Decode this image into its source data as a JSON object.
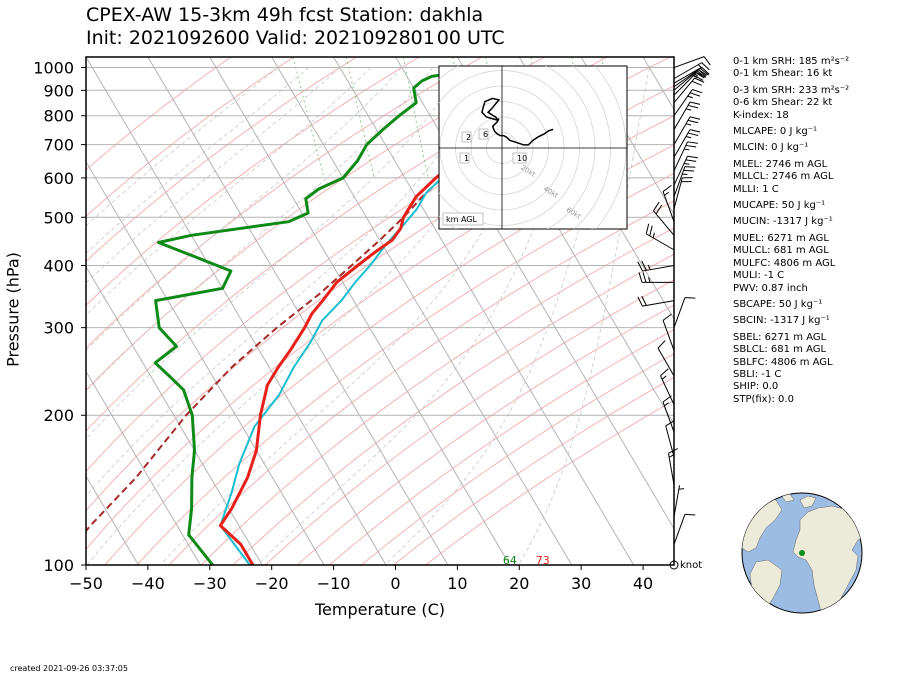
{
  "title_line1": "CPEX-AW 15-3km  49h fcst  Station: dakhla",
  "title_line2": "Init: 2021092600  Valid: 2021092801 00 UTC",
  "created": "created 2021-09-26 03:37:05",
  "wind_unit": "knot",
  "hodograph_label": "km AGL",
  "indices": [
    "0-1 km SRH: 185 m²s⁻²",
    "0-1 km Shear: 16 kt",
    "0-3 km SRH: 233 m²s⁻²",
    "0-6 km Shear: 22 kt",
    "K-index: 18",
    "MLCAPE: 0 J kg⁻¹",
    "MLCIN: 0 J kg⁻¹",
    "MLEL: 2746 m AGL",
    "MLLCL: 2746 m AGL",
    "MLLI: 1 C",
    "MUCAPE: 50 J kg⁻¹",
    "MUCIN: -1317 J kg⁻¹",
    "MUEL: 6271 m AGL",
    "MULCL: 681 m AGL",
    "MULFC: 4806 m AGL",
    "MULI: -1 C",
    "PWV: 0.87 inch",
    "SBCAPE: 50 J kg⁻¹",
    "SBCIN: -1317 J kg⁻¹",
    "SBEL: 6271 m AGL",
    "SBLCL: 681 m AGL",
    "SBLFC: 4806 m AGL",
    "SBLI: -1 C",
    "SHIP: 0.0",
    "STP(fix): 0.0"
  ],
  "colors": {
    "temperature": "#e8201a",
    "dewpoint": "#0e8a16",
    "wetbulb": "#17becf",
    "parcel": "#a52a2a",
    "isotherm": "#b4b4b4",
    "isobar": "#b4b4b4",
    "dry_adiabat": "#f4b3b3",
    "moist_adiabat": "#c9c9c9",
    "mixing_ratio": "#8fc98f",
    "ocean": "#9cbce3",
    "land": "#ecead9"
  },
  "chart_data": {
    "type": "skew-t",
    "xlabel": "Temperature (C)",
    "ylabel": "Pressure (hPa)",
    "xlim": [
      -50,
      45
    ],
    "ylim": [
      1050,
      100
    ],
    "xticks": [
      -50,
      -40,
      -30,
      -20,
      -10,
      0,
      10,
      20,
      30,
      40
    ],
    "yticks": [
      100,
      200,
      300,
      400,
      500,
      600,
      700,
      800,
      900,
      1000
    ],
    "surface_labels": {
      "temperature": "73",
      "dewpoint": "64"
    },
    "series": [
      {
        "key": "temperature",
        "points": [
          [
            1002,
            23
          ],
          [
            995,
            26
          ],
          [
            985,
            29
          ],
          [
            970,
            33
          ],
          [
            950,
            34.5
          ],
          [
            925,
            33.5
          ],
          [
            900,
            31
          ],
          [
            850,
            26
          ],
          [
            800,
            19
          ],
          [
            750,
            12
          ],
          [
            700,
            6
          ],
          [
            650,
            0
          ],
          [
            600,
            -5
          ],
          [
            550,
            -10
          ],
          [
            500,
            -14
          ],
          [
            475,
            -15.5
          ],
          [
            450,
            -18
          ],
          [
            425,
            -22
          ],
          [
            400,
            -26
          ],
          [
            370,
            -31
          ],
          [
            340,
            -35
          ],
          [
            320,
            -38
          ],
          [
            300,
            -40.5
          ],
          [
            270,
            -45
          ],
          [
            250,
            -48.5
          ],
          [
            230,
            -52
          ],
          [
            200,
            -56
          ],
          [
            170,
            -60
          ],
          [
            150,
            -64
          ],
          [
            130,
            -69.5
          ],
          [
            120,
            -73
          ],
          [
            110,
            -71.5
          ],
          [
            100,
            -71.5
          ]
        ]
      },
      {
        "key": "dewpoint",
        "points": [
          [
            1002,
            18
          ],
          [
            995,
            16
          ],
          [
            985,
            12
          ],
          [
            975,
            8
          ],
          [
            960,
            4
          ],
          [
            940,
            2
          ],
          [
            910,
            0
          ],
          [
            880,
            -0.5
          ],
          [
            850,
            -1
          ],
          [
            800,
            -5
          ],
          [
            750,
            -9
          ],
          [
            700,
            -13
          ],
          [
            650,
            -16
          ],
          [
            600,
            -20
          ],
          [
            570,
            -25
          ],
          [
            545,
            -28
          ],
          [
            510,
            -29
          ],
          [
            490,
            -33
          ],
          [
            460,
            -50
          ],
          [
            445,
            -56
          ],
          [
            420,
            -52
          ],
          [
            390,
            -47
          ],
          [
            360,
            -50
          ],
          [
            340,
            -62
          ],
          [
            300,
            -64
          ],
          [
            275,
            -63
          ],
          [
            255,
            -68
          ],
          [
            240,
            -67
          ],
          [
            225,
            -66
          ],
          [
            200,
            -67
          ],
          [
            170,
            -70
          ],
          [
            150,
            -73
          ],
          [
            130,
            -76
          ],
          [
            115,
            -79
          ],
          [
            100,
            -78
          ]
        ]
      },
      {
        "key": "wetbulb",
        "points": [
          [
            1002,
            20.5
          ],
          [
            990,
            19
          ],
          [
            975,
            17
          ],
          [
            960,
            16
          ],
          [
            940,
            15
          ],
          [
            910,
            14
          ],
          [
            880,
            13
          ],
          [
            850,
            12
          ],
          [
            800,
            9
          ],
          [
            750,
            6
          ],
          [
            700,
            3
          ],
          [
            650,
            0
          ],
          [
            600,
            -4
          ],
          [
            560,
            -8
          ],
          [
            520,
            -11
          ],
          [
            480,
            -15
          ],
          [
            440,
            -19.5
          ],
          [
            400,
            -24
          ],
          [
            370,
            -28
          ],
          [
            340,
            -32
          ],
          [
            310,
            -37
          ],
          [
            280,
            -41
          ],
          [
            250,
            -46
          ],
          [
            220,
            -51
          ],
          [
            190,
            -58
          ],
          [
            160,
            -64
          ],
          [
            140,
            -68
          ],
          [
            120,
            -73
          ],
          [
            100,
            -72
          ]
        ]
      },
      {
        "key": "parcel",
        "points": [
          [
            1002,
            25
          ],
          [
            990,
            23
          ],
          [
            970,
            22
          ],
          [
            950,
            21
          ],
          [
            930,
            20
          ],
          [
            900,
            19
          ],
          [
            850,
            16
          ],
          [
            800,
            12
          ],
          [
            750,
            8
          ],
          [
            700,
            4
          ],
          [
            650,
            0
          ],
          [
            600,
            -4
          ],
          [
            550,
            -9
          ],
          [
            500,
            -14
          ],
          [
            450,
            -20
          ],
          [
            400,
            -27
          ],
          [
            350,
            -35
          ],
          [
            300,
            -45
          ],
          [
            250,
            -56
          ],
          [
            200,
            -68
          ],
          [
            150,
            -82
          ],
          [
            120,
            -94
          ],
          [
            100,
            -103
          ]
        ]
      }
    ],
    "wind_barbs": [
      {
        "p": 110,
        "spd": 10,
        "dir": 20
      },
      {
        "p": 125,
        "spd": 5,
        "dir": 10
      },
      {
        "p": 145,
        "spd": 15,
        "dir": 350
      },
      {
        "p": 165,
        "spd": 10,
        "dir": 345
      },
      {
        "p": 185,
        "spd": 15,
        "dir": 340
      },
      {
        "p": 210,
        "spd": 15,
        "dir": 335
      },
      {
        "p": 240,
        "spd": 10,
        "dir": 330
      },
      {
        "p": 270,
        "spd": 10,
        "dir": 340
      },
      {
        "p": 300,
        "spd": 10,
        "dir": 20
      },
      {
        "p": 340,
        "spd": 20,
        "dir": 260
      },
      {
        "p": 370,
        "spd": 25,
        "dir": 270
      },
      {
        "p": 400,
        "spd": 25,
        "dir": 260
      },
      {
        "p": 430,
        "spd": 25,
        "dir": 300
      },
      {
        "p": 460,
        "spd": 20,
        "dir": 320
      },
      {
        "p": 490,
        "spd": 15,
        "dir": 340
      },
      {
        "p": 520,
        "spd": 20,
        "dir": 15
      },
      {
        "p": 550,
        "spd": 25,
        "dir": 20
      },
      {
        "p": 580,
        "spd": 25,
        "dir": 25
      },
      {
        "p": 620,
        "spd": 25,
        "dir": 25
      },
      {
        "p": 660,
        "spd": 25,
        "dir": 30
      },
      {
        "p": 700,
        "spd": 25,
        "dir": 30
      },
      {
        "p": 750,
        "spd": 25,
        "dir": 30
      },
      {
        "p": 800,
        "spd": 25,
        "dir": 35
      },
      {
        "p": 850,
        "spd": 20,
        "dir": 40
      },
      {
        "p": 880,
        "spd": 20,
        "dir": 45
      },
      {
        "p": 900,
        "spd": 25,
        "dir": 50
      },
      {
        "p": 915,
        "spd": 25,
        "dir": 55
      },
      {
        "p": 930,
        "spd": 20,
        "dir": 60
      },
      {
        "p": 950,
        "spd": 15,
        "dir": 60
      },
      {
        "p": 1000,
        "spd": 10,
        "dir": 70
      }
    ],
    "hodograph": {
      "rings_kt": [
        20,
        40,
        60,
        80
      ],
      "ring_labels": [
        "20kt",
        "40kt",
        "60kt",
        "80kt"
      ],
      "height_labels": [
        "1",
        "2",
        "6",
        "10"
      ],
      "path": [
        [
          -3,
          -18
        ],
        [
          -10,
          -20
        ],
        [
          -13,
          -23
        ],
        [
          -11,
          -30
        ],
        [
          -6,
          -32
        ],
        [
          -2,
          -31
        ],
        [
          -7,
          -25
        ],
        [
          -9,
          -23
        ],
        [
          -6,
          -21
        ],
        [
          -4,
          -20
        ],
        [
          -3,
          -18
        ],
        [
          -2,
          -19
        ],
        [
          -3,
          -17
        ],
        [
          -6,
          -14
        ],
        [
          -5,
          -11
        ],
        [
          -3,
          -9
        ],
        [
          -1,
          -8
        ],
        [
          1,
          -8
        ],
        [
          3,
          -7
        ],
        [
          5,
          -5
        ],
        [
          8,
          -4
        ],
        [
          11,
          -3
        ],
        [
          14,
          -2
        ],
        [
          17,
          -2
        ],
        [
          20,
          -5
        ],
        [
          23,
          -7
        ],
        [
          27,
          -9
        ],
        [
          30,
          -11
        ],
        [
          33,
          -12
        ]
      ]
    }
  }
}
